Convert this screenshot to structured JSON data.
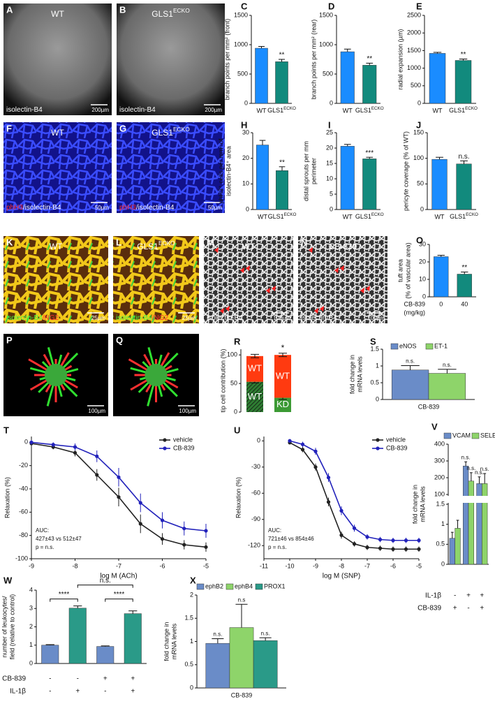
{
  "images": [
    {
      "panel": "A",
      "title": "WT",
      "caption": [
        {
          "text": "isolectin-B4",
          "color": "#ffffff"
        }
      ],
      "scale": "200µm"
    },
    {
      "panel": "B",
      "title": {
        "base": "GLS1",
        "sup": "ECKO"
      },
      "caption": [
        {
          "text": "isolectin-B4",
          "color": "#ffffff"
        }
      ],
      "scale": "200µm"
    },
    {
      "panel": "F",
      "title": "WT",
      "caption": [
        {
          "text": "phH3",
          "color": "#ff2a2a"
        },
        {
          "text": "/isolectin-B4",
          "color": "#ffffff"
        }
      ],
      "scale": "50µm"
    },
    {
      "panel": "G",
      "title": {
        "base": "GLS1",
        "sup": "ECKO"
      },
      "caption": [
        {
          "text": "phH3",
          "color": "#ff2a2a"
        },
        {
          "text": "/isolectin-B4",
          "color": "#ffffff"
        }
      ],
      "scale": "50µm"
    },
    {
      "panel": "K",
      "title": "WT",
      "caption": [
        {
          "text": "isolectin-B4",
          "color": "#44ff44"
        },
        {
          "text": "/NG2",
          "color": "#ff3030"
        }
      ],
      "scale": "25µm"
    },
    {
      "panel": "L",
      "title": {
        "base": "GLS1",
        "sup": "ECKO"
      },
      "caption": [
        {
          "text": "isolectin-B4",
          "color": "#44ff44"
        },
        {
          "text": "/NG2",
          "color": "#ff3030"
        }
      ],
      "scale": "25µm"
    },
    {
      "panel": "M",
      "title": "WT",
      "caption": [
        {
          "text": "isolectin-B4",
          "color": "#ffffff"
        }
      ],
      "scale": "100µm"
    },
    {
      "panel": "N",
      "title": "CB-839",
      "caption": [
        {
          "text": "isolectin-B4",
          "color": "#ffffff"
        }
      ],
      "scale": "100µm"
    },
    {
      "panel": "P",
      "scale": "100µm"
    },
    {
      "panel": "Q",
      "scale": "100µm"
    }
  ],
  "chart_data": [
    {
      "type": "bar",
      "panel": "C",
      "y_label": "branch points per mm² (front)",
      "categories": [
        "WT",
        {
          "base": "GLS1",
          "sup": "ECKO"
        }
      ],
      "values": [
        940,
        710
      ],
      "errors": [
        30,
        40
      ],
      "colors": [
        "#1a8cff",
        "#128a7d"
      ],
      "significance": [
        null,
        "**"
      ],
      "ylim": [
        0,
        1500
      ],
      "yticks": [
        0,
        500,
        1000,
        1500
      ]
    },
    {
      "type": "bar",
      "panel": "D",
      "y_label": "branch points per mm² (rear)",
      "categories": [
        "WT",
        {
          "base": "GLS1",
          "sup": "ECKO"
        }
      ],
      "values": [
        880,
        650
      ],
      "errors": [
        45,
        35
      ],
      "colors": [
        "#1a8cff",
        "#128a7d"
      ],
      "significance": [
        null,
        "**"
      ],
      "ylim": [
        0,
        1500
      ],
      "yticks": [
        0,
        500,
        1000,
        1500
      ]
    },
    {
      "type": "bar",
      "panel": "E",
      "y_label": "radial expansion (µm)",
      "categories": [
        "WT",
        {
          "base": "GLS1",
          "sup": "ECKO"
        }
      ],
      "values": [
        1420,
        1220
      ],
      "errors": [
        30,
        40
      ],
      "colors": [
        "#1a8cff",
        "#128a7d"
      ],
      "significance": [
        null,
        "**"
      ],
      "ylim": [
        0,
        2500
      ],
      "yticks": [
        0,
        500,
        1000,
        1500,
        2000,
        2500
      ]
    },
    {
      "type": "bar",
      "panel": "H",
      "y_label": [
        "phH3⁺ cells per mm² of",
        "isolectin-B4⁺ area"
      ],
      "categories": [
        "WT",
        {
          "base": "GLS1",
          "sup": "ECKO"
        }
      ],
      "values": [
        25.2,
        15.2
      ],
      "errors": [
        1.8,
        1.5
      ],
      "colors": [
        "#1a8cff",
        "#128a7d"
      ],
      "significance": [
        null,
        "**"
      ],
      "ylim": [
        0,
        30
      ],
      "yticks": [
        0,
        10,
        20,
        30
      ]
    },
    {
      "type": "bar",
      "panel": "I",
      "y_label": [
        "distal sprouts per mm",
        "perimeter"
      ],
      "categories": [
        "WT",
        {
          "base": "GLS1",
          "sup": "ECKO"
        }
      ],
      "values": [
        20.6,
        16.5
      ],
      "errors": [
        0.6,
        0.5
      ],
      "colors": [
        "#1a8cff",
        "#128a7d"
      ],
      "significance": [
        null,
        "***"
      ],
      "ylim": [
        0,
        25
      ],
      "yticks": [
        0,
        5,
        10,
        15,
        20,
        25
      ]
    },
    {
      "type": "bar",
      "panel": "J",
      "y_label": "pericyte coverage (% of WT)",
      "categories": [
        "WT",
        {
          "base": "GLS1",
          "sup": "ECKO"
        }
      ],
      "values": [
        98,
        89
      ],
      "errors": [
        4,
        6
      ],
      "colors": [
        "#1a8cff",
        "#128a7d"
      ],
      "significance": [
        null,
        "n.s."
      ],
      "ylim": [
        0,
        150
      ],
      "yticks": [
        0,
        50,
        100,
        150
      ]
    },
    {
      "type": "bar",
      "panel": "O",
      "y_label": [
        "tuft area",
        "(% of vascular area)"
      ],
      "x_label": [
        "CB-839",
        "(mg/kg)"
      ],
      "categories": [
        "0",
        "40"
      ],
      "values": [
        23,
        13
      ],
      "errors": [
        0.8,
        1.2
      ],
      "colors": [
        "#1a8cff",
        "#128a7d"
      ],
      "significance": [
        null,
        "**"
      ],
      "ylim": [
        0,
        30
      ],
      "yticks": [
        0,
        10,
        20,
        30
      ]
    },
    {
      "type": "stacked_bar",
      "panel": "R",
      "y_label": "tip cell contribution (%)",
      "significance": [
        null,
        "*"
      ],
      "ylim": [
        0,
        110
      ],
      "yticks": [
        0,
        50,
        100
      ],
      "series": [
        {
          "labels": [
            "WT",
            "KD"
          ],
          "colors": [
            "#2e7d32",
            "#3c9a34"
          ],
          "hatched": [
            true,
            false
          ],
          "values": [
            53,
            25
          ],
          "errors": [
            2,
            3
          ]
        },
        {
          "labels": [
            "WT",
            "WT"
          ],
          "colors": [
            "#ff3a10",
            "#ff3a10"
          ],
          "hatched": [
            false,
            false
          ],
          "values": [
            45,
            75
          ],
          "errors": [
            3,
            3
          ]
        }
      ]
    },
    {
      "type": "grouped_bar",
      "panel": "S",
      "y_label": [
        "fold change in",
        "mRNA levels"
      ],
      "x_label": "CB-839",
      "ylim": [
        0,
        1.5
      ],
      "yticks": [
        0,
        0.5,
        1,
        1.5
      ],
      "series": [
        {
          "name": "eNOS",
          "color": "#6a8cc8",
          "values": [
            0.88
          ],
          "errors": [
            0.13
          ],
          "significance": [
            "n.s."
          ]
        },
        {
          "name": "ET-1",
          "color": "#8ed46a",
          "values": [
            0.78
          ],
          "errors": [
            0.12
          ],
          "significance": [
            "n.s."
          ]
        }
      ]
    },
    {
      "type": "line",
      "panel": "T",
      "x_label": "log M (ACh)",
      "y_label": "Relaxation (%)",
      "x": [
        -9,
        -8.5,
        -8,
        -7.5,
        -7,
        -6.5,
        -6,
        -5.5,
        -5
      ],
      "xlim": [
        -9,
        -5
      ],
      "xticks": [
        -9,
        -8,
        -7,
        -6,
        -5
      ],
      "ylim": [
        -100,
        5
      ],
      "yticks": [
        0,
        -20,
        -40,
        -60,
        -80,
        -100
      ],
      "annotation": [
        "AUC:",
        "427±43 vs 512±47",
        "p = n.s."
      ],
      "series": [
        {
          "name": "vehicle",
          "color": "#222222",
          "values": [
            -1,
            -4,
            -9,
            -28,
            -47,
            -70,
            -83,
            -88,
            -90
          ],
          "errors": [
            2,
            2,
            3,
            5,
            8,
            8,
            5,
            4,
            4
          ]
        },
        {
          "name": "CB-839",
          "color": "#2222bb",
          "values": [
            0,
            -2,
            -4,
            -12,
            -30,
            -52,
            -67,
            -74,
            -76
          ],
          "errors": [
            2,
            2,
            3,
            5,
            8,
            8,
            7,
            6,
            6
          ]
        }
      ]
    },
    {
      "type": "line",
      "panel": "U",
      "x_label": "log M (SNP)",
      "y_label": "Relaxation (%)",
      "x": [
        -10,
        -9.5,
        -9,
        -8.5,
        -8,
        -7.5,
        -7,
        -6.5,
        -6,
        -5.5,
        -5
      ],
      "xlim": [
        -11,
        -5
      ],
      "xticks": [
        -11,
        -10,
        -9,
        -8,
        -7,
        -6,
        -5
      ],
      "ylim": [
        -135,
        5
      ],
      "yticks": [
        0,
        -30,
        -60,
        -90,
        -120
      ],
      "annotation": [
        "AUC:",
        "721±46 vs 854±46",
        "p = n.s."
      ],
      "series": [
        {
          "name": "vehicle",
          "color": "#222222",
          "values": [
            -2,
            -10,
            -30,
            -70,
            -108,
            -118,
            -122,
            -123,
            -124,
            -124,
            -124
          ],
          "errors": [
            2,
            3,
            4,
            5,
            4,
            3,
            3,
            3,
            3,
            3,
            3
          ]
        },
        {
          "name": "CB-839",
          "color": "#2222bb",
          "values": [
            0,
            -4,
            -12,
            -42,
            -80,
            -100,
            -110,
            -113,
            -114,
            -114,
            -114
          ],
          "errors": [
            2,
            3,
            4,
            5,
            5,
            4,
            3,
            3,
            3,
            3,
            3
          ]
        }
      ]
    },
    {
      "type": "grouped_bar",
      "panel": "V",
      "y_label": [
        "fold change in",
        "mRNA levels"
      ],
      "ylim": [
        0,
        400
      ],
      "yticks": [
        0,
        0.5,
        1,
        1.5,
        100,
        200,
        300,
        400
      ],
      "axis_break": [
        1.5,
        100
      ],
      "conditions": [
        {
          "name": "IL-1β",
          "signs": [
            "-",
            "+",
            "+"
          ]
        },
        {
          "name": "CB-839",
          "signs": [
            "+",
            "-",
            "+"
          ]
        }
      ],
      "series": [
        {
          "name": "VCAM",
          "color": "#6a8cc8",
          "values": [
            0.65,
            270,
            165
          ],
          "errors": [
            0.15,
            25,
            40
          ],
          "significance": [
            null,
            "n.s.",
            "n.s."
          ]
        },
        {
          "name": "SELE",
          "color": "#8ed46a",
          "values": [
            0.9,
            180,
            165
          ],
          "errors": [
            0.2,
            50,
            60
          ],
          "significance": [
            null,
            "n.s.",
            "n.s."
          ]
        }
      ]
    },
    {
      "type": "bar",
      "panel": "W",
      "y_label": [
        "number of leukocytes/",
        "field (relative to control)"
      ],
      "values": [
        1.0,
        3.02,
        0.93,
        2.72
      ],
      "errors": [
        0.03,
        0.12,
        0.03,
        0.15
      ],
      "colors": [
        "#6a8cc8",
        "#2a9a88",
        "#6a8cc8",
        "#2a9a88"
      ],
      "ylim": [
        0,
        4
      ],
      "yticks": [
        0,
        1,
        2,
        3,
        4
      ],
      "brackets": [
        "****",
        "****",
        "n.s."
      ],
      "conditions": [
        {
          "name": "CB-839",
          "signs": [
            "-",
            "-",
            "+",
            "+"
          ]
        },
        {
          "name": "IL-1β",
          "signs": [
            "-",
            "+",
            "-",
            "+"
          ]
        }
      ]
    },
    {
      "type": "grouped_bar",
      "panel": "X",
      "y_label": [
        "fold change in",
        "mRNA levels"
      ],
      "x_label": "CB-839",
      "ylim": [
        0,
        2
      ],
      "yticks": [
        0,
        0.5,
        1,
        1.5,
        2
      ],
      "series": [
        {
          "name": "ephB2",
          "color": "#6a8cc8",
          "values": [
            0.96
          ],
          "errors": [
            0.1
          ],
          "significance": [
            "n.s."
          ]
        },
        {
          "name": "ephB4",
          "color": "#8ed46a",
          "values": [
            1.3
          ],
          "errors": [
            0.5
          ],
          "significance": [
            "n.s"
          ]
        },
        {
          "name": "PROX1",
          "color": "#2a9a88",
          "values": [
            1.02
          ],
          "errors": [
            0.06
          ],
          "significance": [
            "n.s."
          ]
        }
      ]
    }
  ]
}
